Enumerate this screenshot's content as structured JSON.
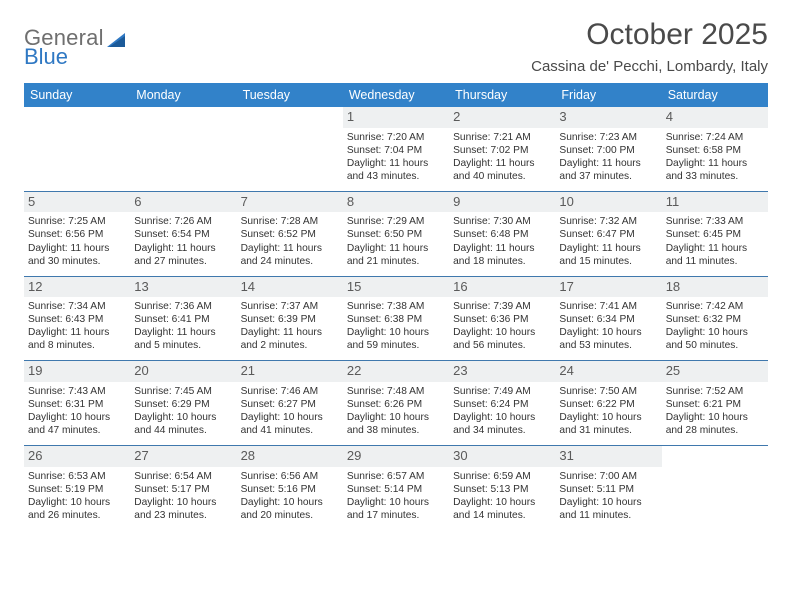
{
  "logo": {
    "general": "General",
    "blue": "Blue"
  },
  "title": "October 2025",
  "location": "Cassina de' Pecchi, Lombardy, Italy",
  "colors": {
    "header_bg": "#3282c9",
    "header_text": "#ffffff",
    "rule": "#3f78ad",
    "daynum_bg": "#eef0f1",
    "text": "#333333",
    "logo_gray": "#6f6f6f",
    "logo_blue": "#2f78c3"
  },
  "weekdays": [
    "Sunday",
    "Monday",
    "Tuesday",
    "Wednesday",
    "Thursday",
    "Friday",
    "Saturday"
  ],
  "weeks": [
    [
      {
        "n": "",
        "sr": "",
        "ss": "",
        "dl": ""
      },
      {
        "n": "",
        "sr": "",
        "ss": "",
        "dl": ""
      },
      {
        "n": "",
        "sr": "",
        "ss": "",
        "dl": ""
      },
      {
        "n": "1",
        "sr": "7:20 AM",
        "ss": "7:04 PM",
        "dl": "11 hours and 43 minutes."
      },
      {
        "n": "2",
        "sr": "7:21 AM",
        "ss": "7:02 PM",
        "dl": "11 hours and 40 minutes."
      },
      {
        "n": "3",
        "sr": "7:23 AM",
        "ss": "7:00 PM",
        "dl": "11 hours and 37 minutes."
      },
      {
        "n": "4",
        "sr": "7:24 AM",
        "ss": "6:58 PM",
        "dl": "11 hours and 33 minutes."
      }
    ],
    [
      {
        "n": "5",
        "sr": "7:25 AM",
        "ss": "6:56 PM",
        "dl": "11 hours and 30 minutes."
      },
      {
        "n": "6",
        "sr": "7:26 AM",
        "ss": "6:54 PM",
        "dl": "11 hours and 27 minutes."
      },
      {
        "n": "7",
        "sr": "7:28 AM",
        "ss": "6:52 PM",
        "dl": "11 hours and 24 minutes."
      },
      {
        "n": "8",
        "sr": "7:29 AM",
        "ss": "6:50 PM",
        "dl": "11 hours and 21 minutes."
      },
      {
        "n": "9",
        "sr": "7:30 AM",
        "ss": "6:48 PM",
        "dl": "11 hours and 18 minutes."
      },
      {
        "n": "10",
        "sr": "7:32 AM",
        "ss": "6:47 PM",
        "dl": "11 hours and 15 minutes."
      },
      {
        "n": "11",
        "sr": "7:33 AM",
        "ss": "6:45 PM",
        "dl": "11 hours and 11 minutes."
      }
    ],
    [
      {
        "n": "12",
        "sr": "7:34 AM",
        "ss": "6:43 PM",
        "dl": "11 hours and 8 minutes."
      },
      {
        "n": "13",
        "sr": "7:36 AM",
        "ss": "6:41 PM",
        "dl": "11 hours and 5 minutes."
      },
      {
        "n": "14",
        "sr": "7:37 AM",
        "ss": "6:39 PM",
        "dl": "11 hours and 2 minutes."
      },
      {
        "n": "15",
        "sr": "7:38 AM",
        "ss": "6:38 PM",
        "dl": "10 hours and 59 minutes."
      },
      {
        "n": "16",
        "sr": "7:39 AM",
        "ss": "6:36 PM",
        "dl": "10 hours and 56 minutes."
      },
      {
        "n": "17",
        "sr": "7:41 AM",
        "ss": "6:34 PM",
        "dl": "10 hours and 53 minutes."
      },
      {
        "n": "18",
        "sr": "7:42 AM",
        "ss": "6:32 PM",
        "dl": "10 hours and 50 minutes."
      }
    ],
    [
      {
        "n": "19",
        "sr": "7:43 AM",
        "ss": "6:31 PM",
        "dl": "10 hours and 47 minutes."
      },
      {
        "n": "20",
        "sr": "7:45 AM",
        "ss": "6:29 PM",
        "dl": "10 hours and 44 minutes."
      },
      {
        "n": "21",
        "sr": "7:46 AM",
        "ss": "6:27 PM",
        "dl": "10 hours and 41 minutes."
      },
      {
        "n": "22",
        "sr": "7:48 AM",
        "ss": "6:26 PM",
        "dl": "10 hours and 38 minutes."
      },
      {
        "n": "23",
        "sr": "7:49 AM",
        "ss": "6:24 PM",
        "dl": "10 hours and 34 minutes."
      },
      {
        "n": "24",
        "sr": "7:50 AM",
        "ss": "6:22 PM",
        "dl": "10 hours and 31 minutes."
      },
      {
        "n": "25",
        "sr": "7:52 AM",
        "ss": "6:21 PM",
        "dl": "10 hours and 28 minutes."
      }
    ],
    [
      {
        "n": "26",
        "sr": "6:53 AM",
        "ss": "5:19 PM",
        "dl": "10 hours and 26 minutes."
      },
      {
        "n": "27",
        "sr": "6:54 AM",
        "ss": "5:17 PM",
        "dl": "10 hours and 23 minutes."
      },
      {
        "n": "28",
        "sr": "6:56 AM",
        "ss": "5:16 PM",
        "dl": "10 hours and 20 minutes."
      },
      {
        "n": "29",
        "sr": "6:57 AM",
        "ss": "5:14 PM",
        "dl": "10 hours and 17 minutes."
      },
      {
        "n": "30",
        "sr": "6:59 AM",
        "ss": "5:13 PM",
        "dl": "10 hours and 14 minutes."
      },
      {
        "n": "31",
        "sr": "7:00 AM",
        "ss": "5:11 PM",
        "dl": "10 hours and 11 minutes."
      },
      {
        "n": "",
        "sr": "",
        "ss": "",
        "dl": ""
      }
    ]
  ],
  "labels": {
    "sunrise": "Sunrise:",
    "sunset": "Sunset:",
    "daylight": "Daylight:"
  }
}
